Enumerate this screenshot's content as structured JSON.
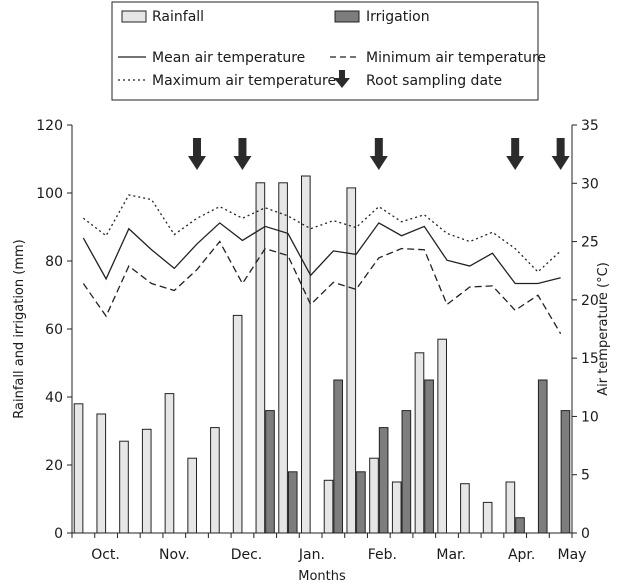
{
  "chart_data": {
    "type": "bar",
    "xlabel": "Months",
    "ylabel_left": "Rainfall and irrigation (mm)",
    "ylabel_right": "Air temperature (°C)",
    "ylim_left": [
      0,
      120
    ],
    "ylim_right": [
      0,
      35
    ],
    "yticks_left": [
      "0",
      "20",
      "40",
      "60",
      "80",
      "100",
      "120"
    ],
    "yticks_right": [
      "0",
      "5",
      "10",
      "15",
      "20",
      "25",
      "30",
      "35"
    ],
    "month_labels": [
      "Oct.",
      "Nov.",
      "Dec.",
      "Jan.",
      "Feb.",
      "Mar.",
      "Apr.",
      "May"
    ],
    "grid": false,
    "legend": {
      "placement": "top",
      "rainfall": "Rainfall",
      "irrigation": "Irrigation",
      "mean_temp": "Mean air temperature",
      "min_temp": "Minimum air temperature",
      "max_temp": "Maximum air temperature",
      "root_sampling": "Root sampling date"
    },
    "colors": {
      "rainfall": "#e6e6e6",
      "irrigation": "#7d7d7d",
      "lines": "#222222",
      "arrow": "#2b2b2b"
    },
    "periods": 22,
    "rainfall": [
      38,
      35,
      27,
      30.5,
      41,
      22,
      31,
      64,
      103,
      103,
      105,
      15.5,
      101.5,
      22,
      15,
      53,
      57,
      14.5,
      9,
      15,
      0,
      0
    ],
    "irrigation": [
      0,
      0,
      0,
      0,
      0,
      0,
      0,
      0,
      36,
      18,
      0,
      45,
      18,
      31,
      36,
      45,
      0,
      0,
      0,
      4.5,
      45,
      36
    ],
    "mean_temp": [
      25.3,
      21.8,
      26.1,
      24.3,
      22.7,
      24.8,
      26.6,
      25.1,
      26.3,
      25.7,
      22.1,
      24.2,
      23.9,
      26.6,
      25.5,
      26.3,
      23.4,
      22.9,
      24.0,
      21.4,
      21.4,
      21.9
    ],
    "min_temp": [
      21.4,
      18.6,
      22.9,
      21.4,
      20.8,
      22.6,
      25.0,
      21.4,
      24.4,
      23.8,
      19.6,
      21.5,
      20.9,
      23.6,
      24.4,
      24.3,
      19.6,
      21.1,
      21.2,
      19.1,
      20.4,
      17.1
    ],
    "max_temp": [
      27.0,
      25.5,
      29.0,
      28.6,
      25.6,
      27.0,
      28.0,
      27.0,
      27.9,
      27.2,
      26.1,
      26.8,
      26.2,
      28.0,
      26.7,
      27.3,
      25.7,
      25.0,
      25.8,
      24.4,
      22.4,
      24.2
    ],
    "root_sampling_periods": [
      5,
      7,
      13,
      19,
      21
    ]
  }
}
